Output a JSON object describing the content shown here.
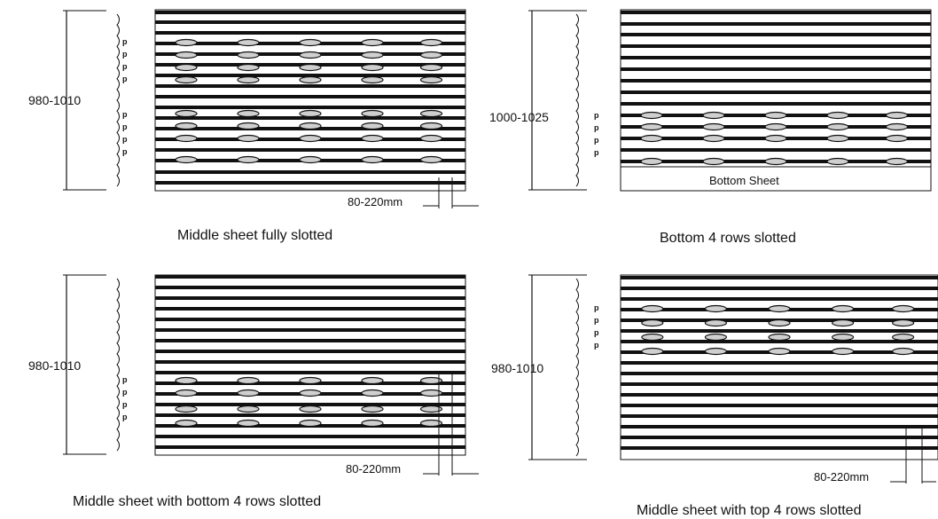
{
  "panels": [
    {
      "id": "middle-full",
      "dimension_label": "980-1010",
      "pitch_labels": [
        "p",
        "p",
        "p",
        "p",
        "p",
        "p",
        "p",
        "p"
      ],
      "width_label": "80-220mm",
      "caption": "Middle sheet fully slotted"
    },
    {
      "id": "bottom-4",
      "dimension_label": "1000-1025",
      "pitch_labels": [
        "p",
        "p",
        "p",
        "p"
      ],
      "inner_label": "Bottom Sheet",
      "caption": "Bottom 4 rows slotted"
    },
    {
      "id": "middle-bottom-4",
      "dimension_label": "980-1010",
      "pitch_labels": [
        "p",
        "p",
        "p",
        "p"
      ],
      "width_label": "80-220mm",
      "caption": "Middle sheet with bottom 4 rows slotted"
    },
    {
      "id": "middle-top-4",
      "dimension_label": "980-1010",
      "pitch_labels": [
        "p",
        "p",
        "p",
        "p"
      ],
      "width_label": "80-220mm",
      "caption": "Middle sheet with top 4 rows slotted"
    }
  ],
  "colors": {
    "line": "#111111",
    "slot_fill": "#cfcfcf",
    "background": "#ffffff"
  }
}
